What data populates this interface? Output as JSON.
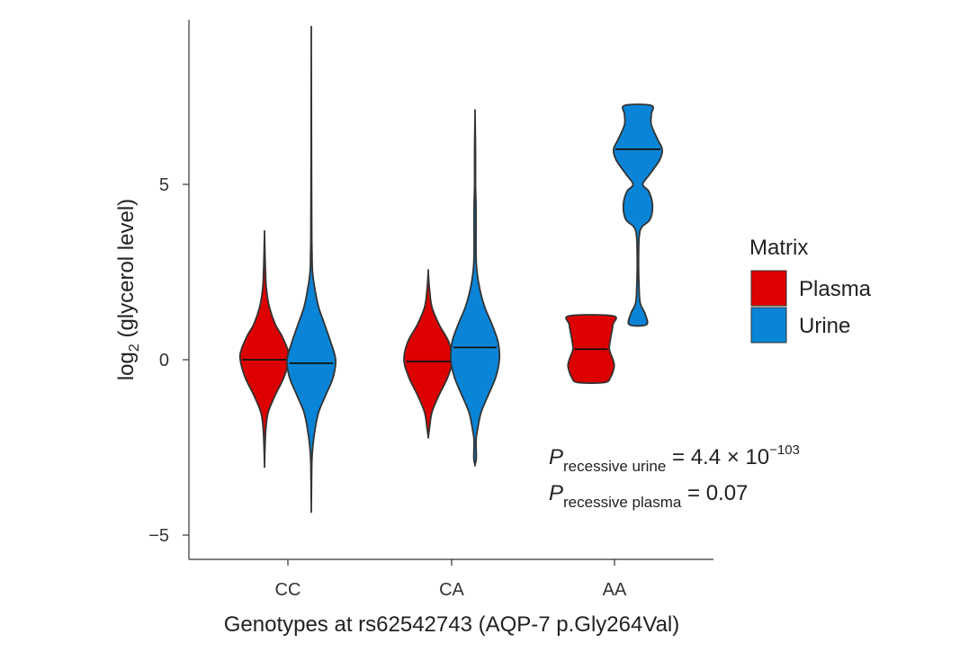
{
  "chart_data": {
    "type": "violin",
    "xlabel": "Genotypes at rs62542743 (AQP-7 p.Gly264Val)",
    "ylabel_main": "log",
    "ylabel_sub": "2",
    "ylabel_rest": " (glycerol level)",
    "ylim": [
      -5.7,
      9.5
    ],
    "yticks": [
      -5,
      0,
      5
    ],
    "ytick_labels": [
      "−5",
      "0",
      "5"
    ],
    "categories": [
      "CC",
      "CA",
      "AA"
    ],
    "legend": {
      "title": "Matrix",
      "items": [
        {
          "label": "Plasma",
          "color": "#dd0000"
        },
        {
          "label": "Urine",
          "color": "#0a84d6"
        }
      ]
    },
    "series": [
      {
        "name": "Plasma",
        "color": "#dd0000",
        "violins": [
          {
            "category": "CC",
            "median": 0.0,
            "profile": [
              [
                -3.0,
                0
              ],
              [
                -2.5,
                0.02
              ],
              [
                -2.0,
                0.05
              ],
              [
                -1.5,
                0.15
              ],
              [
                -1.0,
                0.45
              ],
              [
                -0.5,
                0.8
              ],
              [
                0.0,
                1.0
              ],
              [
                0.3,
                0.95
              ],
              [
                0.7,
                0.7
              ],
              [
                1.0,
                0.45
              ],
              [
                1.5,
                0.2
              ],
              [
                2.0,
                0.08
              ],
              [
                2.5,
                0.04
              ],
              [
                3.0,
                0.02
              ],
              [
                3.6,
                0
              ]
            ]
          },
          {
            "category": "CA",
            "median": -0.05,
            "profile": [
              [
                -2.2,
                0
              ],
              [
                -2.0,
                0.04
              ],
              [
                -1.5,
                0.15
              ],
              [
                -1.0,
                0.45
              ],
              [
                -0.5,
                0.8
              ],
              [
                0.0,
                1.0
              ],
              [
                0.5,
                0.85
              ],
              [
                1.0,
                0.45
              ],
              [
                1.5,
                0.15
              ],
              [
                2.0,
                0.05
              ],
              [
                2.5,
                0
              ]
            ]
          },
          {
            "category": "AA",
            "median": 0.3,
            "profile": [
              [
                -0.65,
                0.55
              ],
              [
                -0.5,
                0.8
              ],
              [
                -0.2,
                0.95
              ],
              [
                0.0,
                0.9
              ],
              [
                0.3,
                0.75
              ],
              [
                0.6,
                0.8
              ],
              [
                1.0,
                0.9
              ],
              [
                1.25,
                0.9
              ]
            ]
          }
        ]
      },
      {
        "name": "Urine",
        "color": "#0a84d6",
        "violins": [
          {
            "category": "CC",
            "median": -0.1,
            "profile": [
              [
                -4.2,
                0
              ],
              [
                -3.0,
                0.02
              ],
              [
                -2.5,
                0.06
              ],
              [
                -2.0,
                0.15
              ],
              [
                -1.5,
                0.3
              ],
              [
                -1.0,
                0.6
              ],
              [
                -0.5,
                0.9
              ],
              [
                0.0,
                1.0
              ],
              [
                0.5,
                0.8
              ],
              [
                1.0,
                0.55
              ],
              [
                1.5,
                0.3
              ],
              [
                2.0,
                0.15
              ],
              [
                2.5,
                0.05
              ],
              [
                3.0,
                0.03
              ],
              [
                3.5,
                0.02
              ],
              [
                5.0,
                0.01
              ],
              [
                9.0,
                0
              ]
            ]
          },
          {
            "category": "CA",
            "median": 0.35,
            "profile": [
              [
                -3.0,
                0
              ],
              [
                -2.8,
                0.05
              ],
              [
                -2.3,
                0.04
              ],
              [
                -2.0,
                0.1
              ],
              [
                -1.5,
                0.25
              ],
              [
                -1.0,
                0.55
              ],
              [
                -0.5,
                0.85
              ],
              [
                0.0,
                1.0
              ],
              [
                0.5,
                0.95
              ],
              [
                1.0,
                0.7
              ],
              [
                1.5,
                0.4
              ],
              [
                2.0,
                0.2
              ],
              [
                2.5,
                0.08
              ],
              [
                3.0,
                0.04
              ],
              [
                4.3,
                0.04
              ],
              [
                5.0,
                0.02
              ],
              [
                6.0,
                0.02
              ],
              [
                7.0,
                0
              ]
            ]
          },
          {
            "category": "AA",
            "median": 6.0,
            "profile": [
              [
                1.0,
                0.35
              ],
              [
                1.3,
                0.3
              ],
              [
                1.6,
                0.1
              ],
              [
                2.0,
                0.05
              ],
              [
                3.0,
                0.03
              ],
              [
                3.7,
                0.1
              ],
              [
                4.0,
                0.5
              ],
              [
                4.4,
                0.6
              ],
              [
                4.8,
                0.45
              ],
              [
                5.0,
                0.2
              ],
              [
                5.3,
                0.5
              ],
              [
                5.7,
                0.9
              ],
              [
                6.0,
                1.0
              ],
              [
                6.3,
                0.8
              ],
              [
                6.7,
                0.55
              ],
              [
                7.0,
                0.55
              ],
              [
                7.25,
                0.55
              ]
            ]
          }
        ]
      }
    ],
    "annotations": [
      {
        "prefix": "P",
        "subscript": "recessive urine",
        "value": " = 4.4 × 10",
        "superscript": "−103"
      },
      {
        "prefix": "P",
        "subscript": "recessive plasma",
        "value": " = 0.07",
        "superscript": ""
      }
    ]
  }
}
